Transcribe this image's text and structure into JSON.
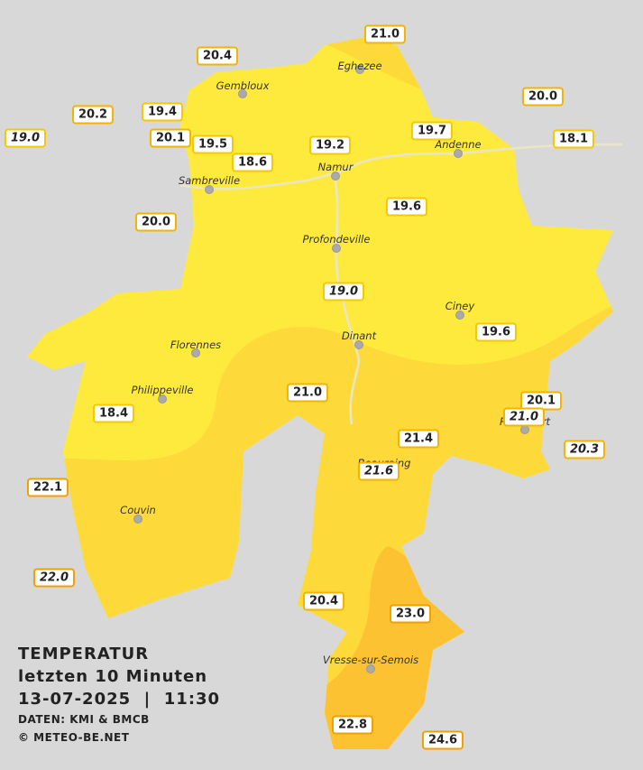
{
  "header": {
    "title": "TEMPERATUR",
    "subtitle": "letzten 10 Minuten",
    "datetime": "13-07-2025  |  11:30",
    "source": "DATEN: KMI & BMCB",
    "copyright": "© METEO-BE.NET"
  },
  "cities": [
    "Eghezee",
    "Gembloux",
    "Andenne",
    "Namur",
    "Sambreville",
    "Profondeville",
    "Ciney",
    "Dinant",
    "Florennes",
    "Philippeville",
    "Rochefort",
    "Beauraing",
    "Couvin",
    "Vresse-sur-Semois"
  ],
  "stations": [
    {
      "value": "21.0",
      "color": "#f2b400"
    },
    {
      "value": "20.4",
      "color": "#f2b400"
    },
    {
      "value": "20.0",
      "color": "#f2b400"
    },
    {
      "value": "20.2",
      "color": "#f2b400"
    },
    {
      "value": "19.4",
      "color": "#f5c800"
    },
    {
      "value": "19.0",
      "color": "#f5c800",
      "style": "italic"
    },
    {
      "value": "20.1",
      "color": "#f2b400"
    },
    {
      "value": "19.5",
      "color": "#f5c800"
    },
    {
      "value": "19.2",
      "color": "#f5c800"
    },
    {
      "value": "19.7",
      "color": "#f5c800"
    },
    {
      "value": "18.1",
      "color": "#f5c800"
    },
    {
      "value": "18.6",
      "color": "#f5c800"
    },
    {
      "value": "20.0",
      "color": "#f2b400"
    },
    {
      "value": "19.6",
      "color": "#f5c800"
    },
    {
      "value": "19.0",
      "color": "#f5c800",
      "style": "italic"
    },
    {
      "value": "19.6",
      "color": "#f5c800"
    },
    {
      "value": "21.0",
      "color": "#f2b400"
    },
    {
      "value": "18.4",
      "color": "#f5c800"
    },
    {
      "value": "20.1",
      "color": "#f2b400"
    },
    {
      "value": "21.0",
      "color": "#f2b400",
      "style": "italic"
    },
    {
      "value": "21.4",
      "color": "#f2b400"
    },
    {
      "value": "20.3",
      "color": "#f2b400",
      "style": "italic"
    },
    {
      "value": "21.6",
      "color": "#f2b400",
      "style": "italic"
    },
    {
      "value": "22.1",
      "color": "#f0a000"
    },
    {
      "value": "22.0",
      "color": "#f0a000",
      "style": "italic"
    },
    {
      "value": "20.4",
      "color": "#f2b400"
    },
    {
      "value": "23.0",
      "color": "#f0a000"
    },
    {
      "value": "22.8",
      "color": "#f0a000"
    },
    {
      "value": "24.6",
      "color": "#f0a000"
    }
  ]
}
